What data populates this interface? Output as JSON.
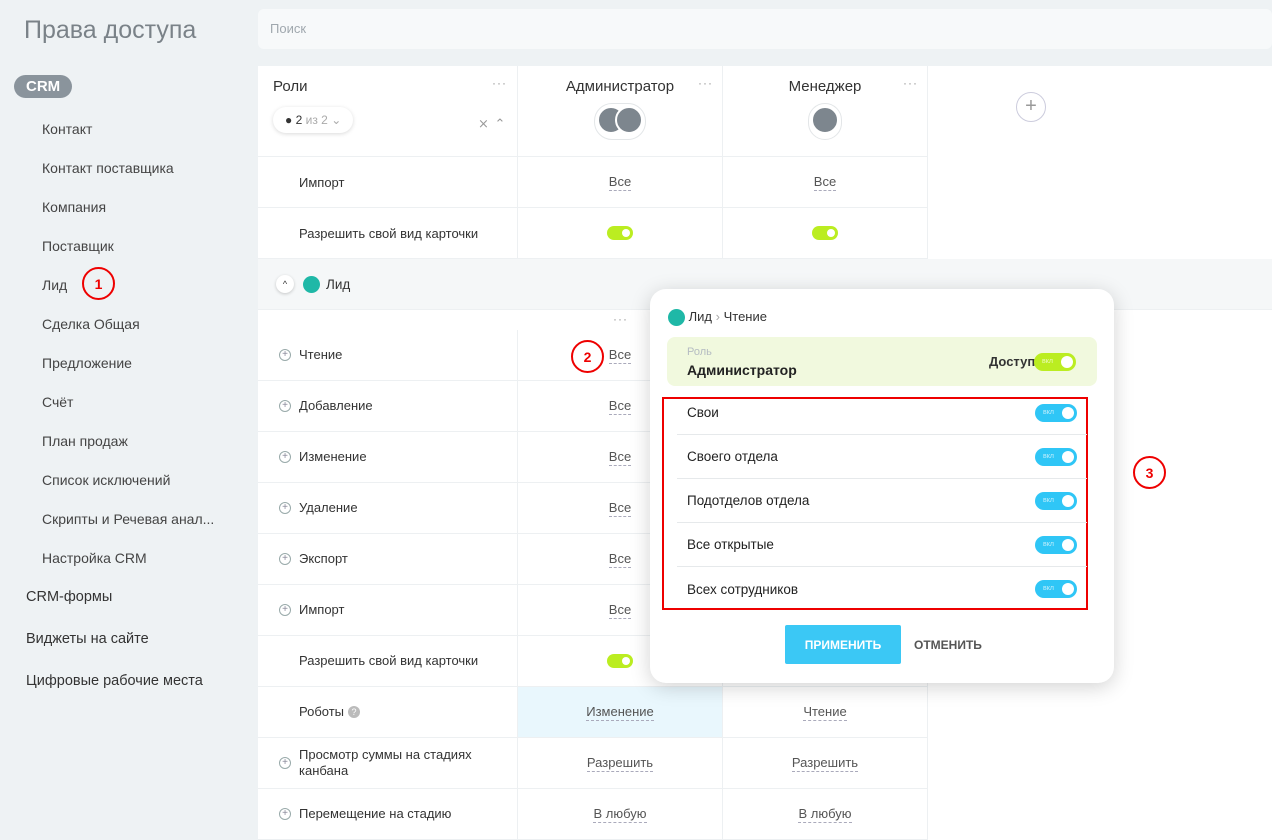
{
  "sidebar": {
    "title": "Права доступа",
    "section": "CRM",
    "sub_items": [
      "Контакт",
      "Контакт поставщика",
      "Компания",
      "Поставщик",
      "Лид",
      "Сделка Общая",
      "Предложение",
      "Счёт",
      "План продаж",
      "Список исключений",
      "Скрипты и Речевая анал...",
      "Настройка CRM"
    ],
    "top_items": [
      "CRM-формы",
      "Виджеты на сайте",
      "Цифровые рабочие места"
    ]
  },
  "search": {
    "placeholder": "Поиск"
  },
  "table": {
    "roles_header": "Роли",
    "filter_count": "2",
    "filter_of": "из 2",
    "columns": [
      "Администратор",
      "Менеджер"
    ],
    "top_rows": [
      {
        "label": "Импорт",
        "admin": "Все",
        "manager": "Все"
      },
      {
        "label": "Разрешить свой вид карточки",
        "admin": "toggle-on",
        "manager": "toggle-on"
      }
    ],
    "section": "Лид",
    "rows": [
      {
        "label": "Чтение",
        "admin": "Все",
        "manager": ""
      },
      {
        "label": "Добавление",
        "admin": "Все"
      },
      {
        "label": "Изменение",
        "admin": "Все"
      },
      {
        "label": "Удаление",
        "admin": "Все"
      },
      {
        "label": "Экспорт",
        "admin": "Все"
      },
      {
        "label": "Импорт",
        "admin": "Все"
      },
      {
        "label": "Разрешить свой вид карточки",
        "admin": "toggle-on"
      },
      {
        "label": "Роботы",
        "admin": "Изменение",
        "manager": "Чтение"
      },
      {
        "label": "Просмотр суммы на стадиях канбана",
        "admin": "Разрешить",
        "manager": "Разрешить"
      },
      {
        "label": "Перемещение на стадию",
        "admin": "В любую",
        "manager": "В любую"
      }
    ]
  },
  "popup": {
    "crumb_entity": "Лид",
    "crumb_action": "Чтение",
    "role_label": "Роль",
    "role_value": "Администратор",
    "access_label": "Доступ",
    "toggle_text": "вкл",
    "options": [
      "Свои",
      "Своего отдела",
      "Подотделов отдела",
      "Все открытые",
      "Всех сотрудников"
    ],
    "apply": "ПРИМЕНИТЬ",
    "cancel": "ОТМЕНИТЬ"
  },
  "annotations": [
    "1",
    "2",
    "3"
  ],
  "colors": {
    "toggle_green": "#bbed21",
    "toggle_blue": "#2fc6f6",
    "apply": "#3bc8f5",
    "highlight": "#e00000"
  }
}
